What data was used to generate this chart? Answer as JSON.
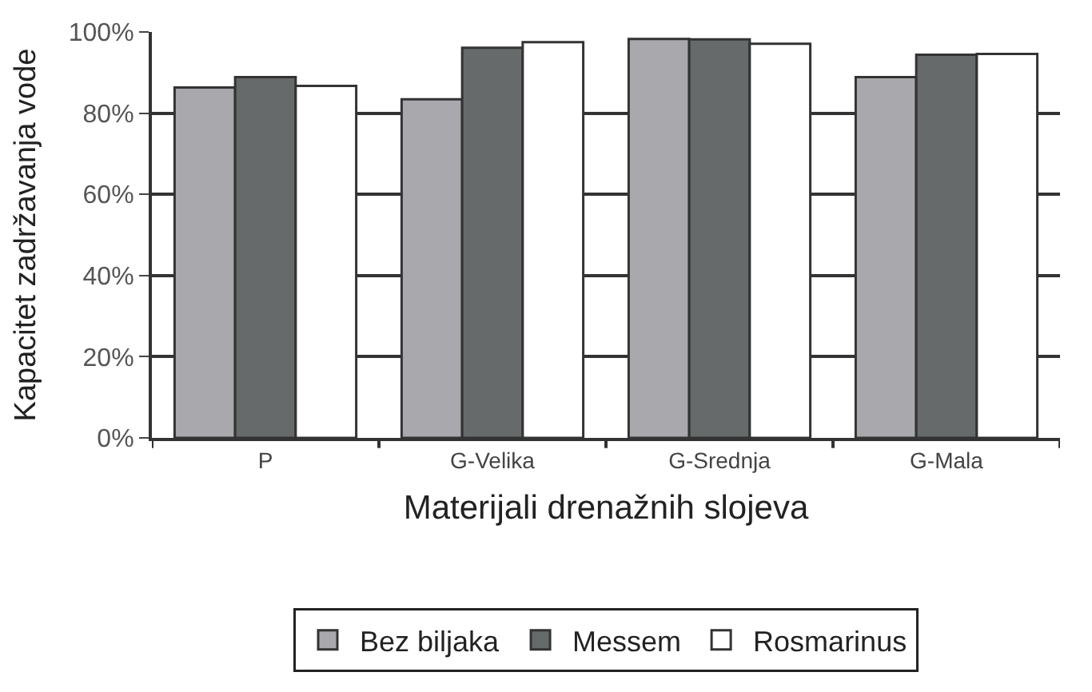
{
  "chart_data": {
    "type": "bar",
    "xlabel": "Materijali drenažnih slojeva",
    "ylabel": "Kapacitet zadržavanja vode",
    "categories": [
      "P",
      "G-Velika",
      "G-Srednja",
      "G-Mala"
    ],
    "series": [
      {
        "name": "Bez biljaka",
        "color": "#a9a9ad",
        "values": [
          86.3,
          83.4,
          98.3,
          88.9
        ]
      },
      {
        "name": "Messem",
        "color": "#676a6a",
        "values": [
          88.9,
          96.1,
          98.2,
          94.4
        ]
      },
      {
        "name": "Rosmarinus",
        "color": "#ffffff",
        "values": [
          86.7,
          97.5,
          97.1,
          94.6
        ]
      }
    ],
    "ylim": [
      0,
      100
    ],
    "yticks": [
      {
        "value": 0,
        "label": "0%"
      },
      {
        "value": 20,
        "label": "20%"
      },
      {
        "value": 40,
        "label": "40%"
      },
      {
        "value": 60,
        "label": "60%"
      },
      {
        "value": 80,
        "label": "80%"
      },
      {
        "value": 100,
        "label": "100%"
      }
    ],
    "grid": "y",
    "legend": "bottom"
  }
}
